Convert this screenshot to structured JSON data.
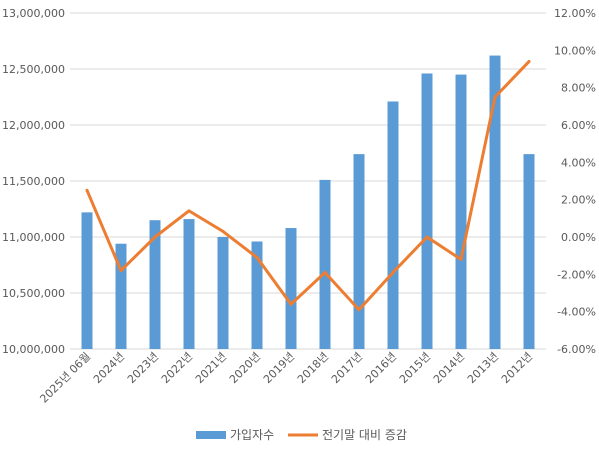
{
  "chart_data": {
    "type": "bar+line",
    "categories": [
      "2025년 06월",
      "2024년",
      "2023년",
      "2022년",
      "2021년",
      "2020년",
      "2019년",
      "2018년",
      "2017년",
      "2016년",
      "2015년",
      "2014년",
      "2013년",
      "2012년"
    ],
    "series": [
      {
        "name": "가입자수",
        "type": "bar",
        "axis": "left",
        "color": "#5B9BD5",
        "values": [
          11220000,
          10940000,
          11150000,
          11160000,
          11000000,
          10960000,
          11080000,
          11510000,
          11740000,
          12210000,
          12460000,
          12450000,
          12620000,
          11740000
        ]
      },
      {
        "name": "전기말 대비 증감",
        "type": "line",
        "axis": "right",
        "color": "#ED7D31",
        "values": [
          2.5,
          -1.8,
          0.0,
          1.4,
          0.3,
          -1.1,
          -3.6,
          -1.9,
          -3.9,
          -1.9,
          0.0,
          -1.2,
          7.5,
          9.4
        ]
      }
    ],
    "y_left": {
      "min": 10000000,
      "max": 13000000,
      "ticks": [
        "10,000,000",
        "10,500,000",
        "11,000,000",
        "11,500,000",
        "12,000,000",
        "12,500,000",
        "13,000,000"
      ]
    },
    "y_right": {
      "min": -6,
      "max": 12,
      "ticks": [
        "-6.00%",
        "-4.00%",
        "-2.00%",
        "0.00%",
        "2.00%",
        "4.00%",
        "6.00%",
        "8.00%",
        "10.00%",
        "12.00%"
      ]
    },
    "grid": true,
    "legend_position": "bottom"
  }
}
